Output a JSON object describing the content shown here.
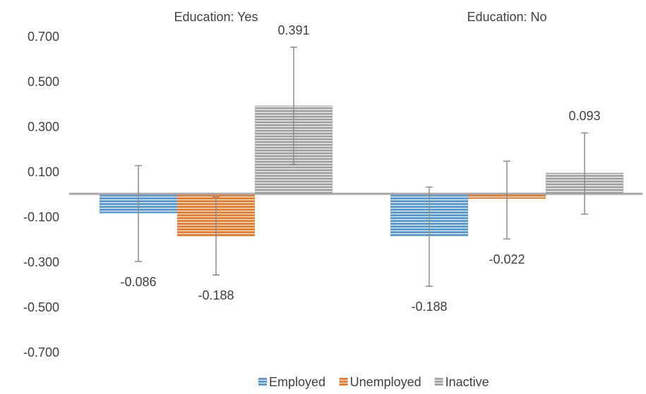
{
  "chart_data": {
    "type": "bar",
    "groups": [
      "Education: Yes",
      "Education: No"
    ],
    "ylim": [
      -0.7,
      0.7
    ],
    "yticks": [
      "0.700",
      "0.500",
      "0.300",
      "0.100",
      "-0.100",
      "-0.300",
      "-0.500",
      "-0.700"
    ],
    "ytick_values": [
      0.7,
      0.5,
      0.3,
      0.1,
      -0.1,
      -0.3,
      -0.5,
      -0.7
    ],
    "series": [
      {
        "name": "Employed",
        "color": "#5b9bd5",
        "values": [
          -0.086,
          -0.188
        ],
        "labels": [
          "-0.086",
          "-0.188"
        ],
        "error_low": [
          -0.3,
          -0.41
        ],
        "error_high": [
          0.125,
          0.03
        ]
      },
      {
        "name": "Unemployed",
        "color": "#ed7d31",
        "values": [
          -0.188,
          -0.022
        ],
        "labels": [
          "-0.188",
          "-0.022"
        ],
        "error_low": [
          -0.36,
          -0.2
        ],
        "error_high": [
          -0.015,
          0.145
        ]
      },
      {
        "name": "Inactive",
        "color": "#a5a5a5",
        "values": [
          0.391,
          0.093
        ],
        "labels": [
          "0.391",
          "0.093"
        ],
        "error_low": [
          0.13,
          -0.09
        ],
        "error_high": [
          0.65,
          0.27
        ]
      }
    ],
    "legend": {
      "position": "bottom",
      "entries": [
        "Employed",
        "Unemployed",
        "Inactive"
      ]
    },
    "grid": false,
    "title": "",
    "xlabel": "",
    "ylabel": ""
  }
}
